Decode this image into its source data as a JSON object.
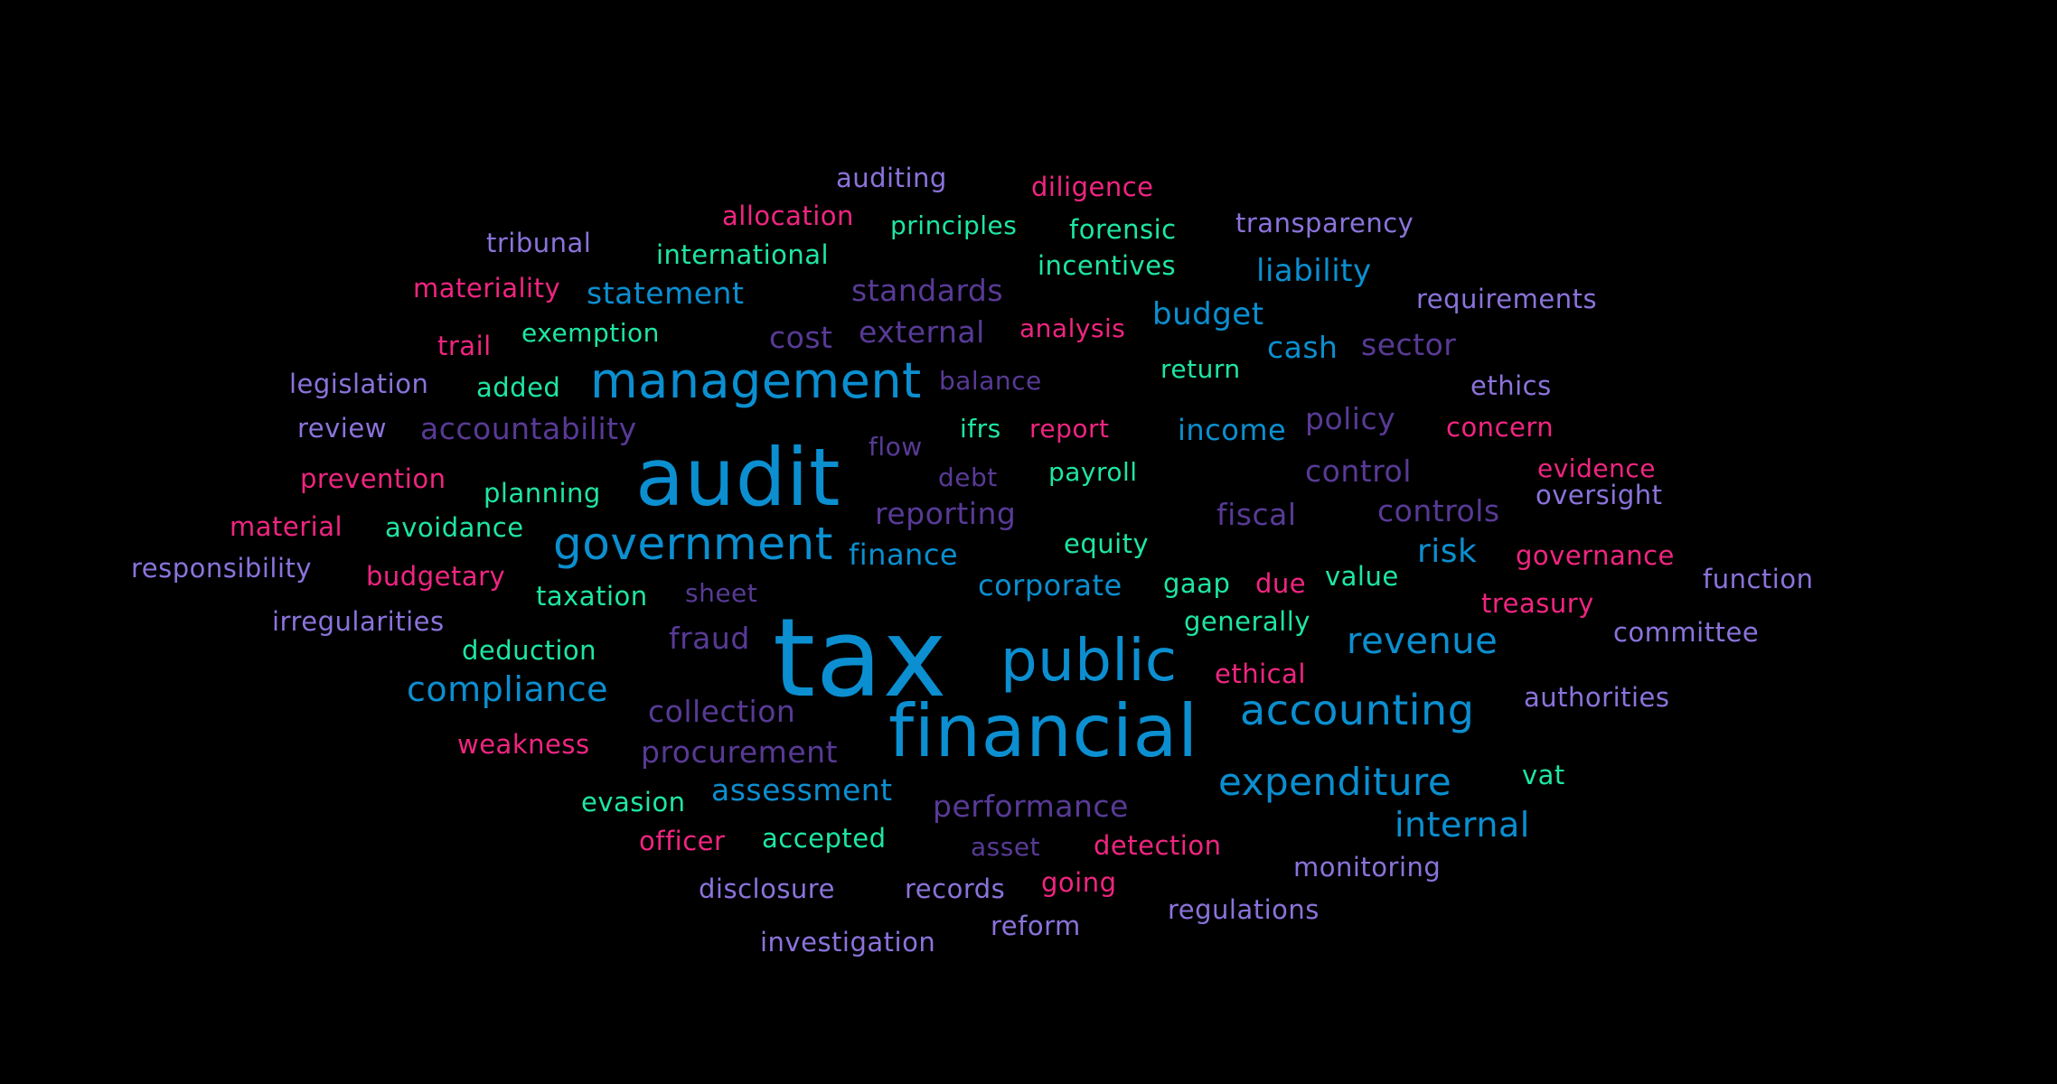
{
  "palette": {
    "background": "#000000",
    "blue": "#0b8fd0",
    "pink": "#f02580",
    "green": "#1ee6a3",
    "lavender": "#8b73db",
    "indigo": "#583a96"
  },
  "words": [
    {
      "text": "tax",
      "color": "blue"
    },
    {
      "text": "financial",
      "color": "blue"
    },
    {
      "text": "audit",
      "color": "blue"
    },
    {
      "text": "public",
      "color": "blue"
    },
    {
      "text": "management",
      "color": "blue"
    },
    {
      "text": "government",
      "color": "blue"
    },
    {
      "text": "accounting",
      "color": "blue"
    },
    {
      "text": "expenditure",
      "color": "blue"
    },
    {
      "text": "revenue",
      "color": "blue"
    },
    {
      "text": "compliance",
      "color": "blue"
    },
    {
      "text": "internal",
      "color": "blue"
    },
    {
      "text": "assessment",
      "color": "blue"
    },
    {
      "text": "statement",
      "color": "blue"
    },
    {
      "text": "liability",
      "color": "blue"
    },
    {
      "text": "budget",
      "color": "blue"
    },
    {
      "text": "cash",
      "color": "blue"
    },
    {
      "text": "income",
      "color": "blue"
    },
    {
      "text": "finance",
      "color": "blue"
    },
    {
      "text": "corporate",
      "color": "blue"
    },
    {
      "text": "risk",
      "color": "blue"
    },
    {
      "text": "auditing",
      "color": "lavender"
    },
    {
      "text": "diligence",
      "color": "pink"
    },
    {
      "text": "allocation",
      "color": "pink"
    },
    {
      "text": "principles",
      "color": "green"
    },
    {
      "text": "forensic",
      "color": "green"
    },
    {
      "text": "transparency",
      "color": "lavender"
    },
    {
      "text": "tribunal",
      "color": "lavender"
    },
    {
      "text": "international",
      "color": "green"
    },
    {
      "text": "incentives",
      "color": "green"
    },
    {
      "text": "materiality",
      "color": "pink"
    },
    {
      "text": "standards",
      "color": "indigo"
    },
    {
      "text": "requirements",
      "color": "lavender"
    },
    {
      "text": "trail",
      "color": "pink"
    },
    {
      "text": "exemption",
      "color": "green"
    },
    {
      "text": "cost",
      "color": "indigo"
    },
    {
      "text": "external",
      "color": "indigo"
    },
    {
      "text": "analysis",
      "color": "pink"
    },
    {
      "text": "sector",
      "color": "indigo"
    },
    {
      "text": "legislation",
      "color": "lavender"
    },
    {
      "text": "added",
      "color": "green"
    },
    {
      "text": "balance",
      "color": "indigo"
    },
    {
      "text": "return",
      "color": "green"
    },
    {
      "text": "ethics",
      "color": "lavender"
    },
    {
      "text": "review",
      "color": "lavender"
    },
    {
      "text": "accountability",
      "color": "indigo"
    },
    {
      "text": "ifrs",
      "color": "green"
    },
    {
      "text": "report",
      "color": "pink"
    },
    {
      "text": "policy",
      "color": "indigo"
    },
    {
      "text": "concern",
      "color": "pink"
    },
    {
      "text": "flow",
      "color": "indigo"
    },
    {
      "text": "prevention",
      "color": "pink"
    },
    {
      "text": "debt",
      "color": "indigo"
    },
    {
      "text": "payroll",
      "color": "green"
    },
    {
      "text": "control",
      "color": "indigo"
    },
    {
      "text": "evidence",
      "color": "pink"
    },
    {
      "text": "planning",
      "color": "green"
    },
    {
      "text": "reporting",
      "color": "indigo"
    },
    {
      "text": "fiscal",
      "color": "indigo"
    },
    {
      "text": "controls",
      "color": "indigo"
    },
    {
      "text": "oversight",
      "color": "lavender"
    },
    {
      "text": "material",
      "color": "pink"
    },
    {
      "text": "avoidance",
      "color": "green"
    },
    {
      "text": "equity",
      "color": "green"
    },
    {
      "text": "governance",
      "color": "pink"
    },
    {
      "text": "responsibility",
      "color": "lavender"
    },
    {
      "text": "budgetary",
      "color": "pink"
    },
    {
      "text": "gaap",
      "color": "green"
    },
    {
      "text": "due",
      "color": "pink"
    },
    {
      "text": "value",
      "color": "green"
    },
    {
      "text": "function",
      "color": "lavender"
    },
    {
      "text": "taxation",
      "color": "green"
    },
    {
      "text": "sheet",
      "color": "indigo"
    },
    {
      "text": "treasury",
      "color": "pink"
    },
    {
      "text": "irregularities",
      "color": "lavender"
    },
    {
      "text": "generally",
      "color": "green"
    },
    {
      "text": "committee",
      "color": "lavender"
    },
    {
      "text": "fraud",
      "color": "indigo"
    },
    {
      "text": "deduction",
      "color": "green"
    },
    {
      "text": "ethical",
      "color": "pink"
    },
    {
      "text": "authorities",
      "color": "lavender"
    },
    {
      "text": "collection",
      "color": "indigo"
    },
    {
      "text": "weakness",
      "color": "pink"
    },
    {
      "text": "procurement",
      "color": "indigo"
    },
    {
      "text": "vat",
      "color": "green"
    },
    {
      "text": "evasion",
      "color": "green"
    },
    {
      "text": "performance",
      "color": "indigo"
    },
    {
      "text": "officer",
      "color": "pink"
    },
    {
      "text": "accepted",
      "color": "green"
    },
    {
      "text": "asset",
      "color": "indigo"
    },
    {
      "text": "detection",
      "color": "pink"
    },
    {
      "text": "going",
      "color": "pink"
    },
    {
      "text": "monitoring",
      "color": "lavender"
    },
    {
      "text": "disclosure",
      "color": "lavender"
    },
    {
      "text": "records",
      "color": "lavender"
    },
    {
      "text": "regulations",
      "color": "lavender"
    },
    {
      "text": "reform",
      "color": "lavender"
    },
    {
      "text": "investigation",
      "color": "lavender"
    }
  ]
}
